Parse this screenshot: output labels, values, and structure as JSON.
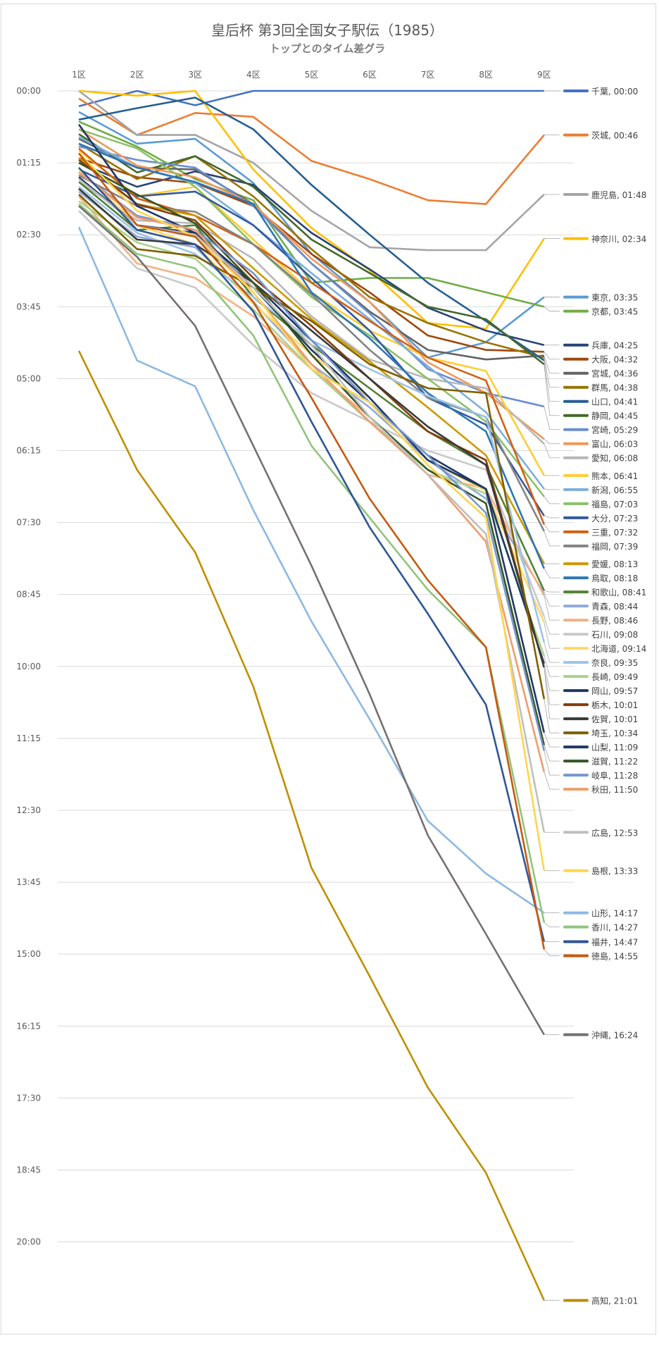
{
  "chart_data": {
    "type": "line",
    "title": "皇后杯 第3回全国女子駅伝（1985）",
    "subtitle": "トップとのタイム差グラ",
    "xlabel": "",
    "ylabel": "",
    "categories": [
      "1区",
      "2区",
      "3区",
      "4区",
      "5区",
      "6区",
      "7区",
      "8区",
      "9区"
    ],
    "y_unit": "seconds behind leader (mm:ss)",
    "y_ticks": [
      "00:00",
      "01:15",
      "02:30",
      "03:45",
      "05:00",
      "06:15",
      "07:30",
      "08:45",
      "10:00",
      "11:15",
      "12:30",
      "13:45",
      "15:00",
      "16:15",
      "17:30",
      "18:45",
      "20:00"
    ],
    "y_tick_step_seconds": 75,
    "ylim": [
      0,
      1350
    ],
    "y_reversed": true,
    "grid": true,
    "legend": "right (end-of-line labels)",
    "series": [
      {
        "name": "千葉",
        "label": "千葉, 00:00",
        "color": "#4472c4",
        "values": [
          16,
          0,
          15,
          0,
          0,
          0,
          0,
          0,
          0
        ]
      },
      {
        "name": "茨城",
        "label": "茨城, 00:46",
        "color": "#ed7d31",
        "values": [
          8,
          46,
          23,
          27,
          73,
          92,
          114,
          118,
          46
        ]
      },
      {
        "name": "鹿児島",
        "label": "鹿児島, 01:48",
        "color": "#a5a5a5",
        "values": [
          0,
          46,
          46,
          75,
          125,
          163,
          166,
          166,
          108
        ]
      },
      {
        "name": "神奈川",
        "label": "神奈川, 02:34",
        "color": "#ffc000",
        "values": [
          0,
          5,
          0,
          82,
          143,
          187,
          242,
          248,
          154
        ]
      },
      {
        "name": "東京",
        "label": "東京, 03:35",
        "color": "#5b9bd5",
        "values": [
          22,
          55,
          50,
          96,
          170,
          220,
          278,
          262,
          215
        ]
      },
      {
        "name": "京都",
        "label": "京都, 03:45",
        "color": "#70ad47",
        "values": [
          32,
          58,
          92,
          114,
          200,
          195,
          195,
          210,
          225
        ]
      },
      {
        "name": "兵庫",
        "label": "兵庫, 04:25",
        "color": "#264478",
        "values": [
          75,
          100,
          84,
          98,
          148,
          186,
          226,
          250,
          265
        ]
      },
      {
        "name": "大阪",
        "label": "大阪, 04:32",
        "color": "#9e480e",
        "values": [
          70,
          90,
          96,
          120,
          170,
          210,
          255,
          270,
          272
        ]
      },
      {
        "name": "宮城",
        "label": "宮城, 04:36",
        "color": "#636363",
        "values": [
          50,
          80,
          82,
          118,
          180,
          230,
          270,
          280,
          276
        ]
      },
      {
        "name": "群馬",
        "label": "群馬, 04:38",
        "color": "#997300",
        "values": [
          55,
          92,
          68,
          110,
          165,
          215,
          242,
          262,
          278
        ]
      },
      {
        "name": "山口",
        "label": "山口, 04:41",
        "color": "#255e91",
        "values": [
          30,
          18,
          7,
          40,
          98,
          150,
          200,
          240,
          281
        ]
      },
      {
        "name": "静岡",
        "label": "静岡, 04:45",
        "color": "#43682b",
        "values": [
          45,
          85,
          68,
          100,
          155,
          190,
          225,
          238,
          285
        ]
      },
      {
        "name": "宮崎",
        "label": "宮崎, 05:29",
        "color": "#698ed0",
        "values": [
          58,
          72,
          80,
          120,
          180,
          232,
          290,
          315,
          329
        ]
      },
      {
        "name": "富山",
        "label": "富山, 06:03",
        "color": "#f1975a",
        "values": [
          40,
          78,
          90,
          118,
          175,
          220,
          283,
          315,
          363
        ]
      },
      {
        "name": "愛知",
        "label": "愛知, 06:08",
        "color": "#b7b7b7",
        "values": [
          95,
          135,
          138,
          175,
          235,
          280,
          300,
          310,
          368
        ]
      },
      {
        "name": "熊本",
        "label": "熊本, 06:41",
        "color": "#ffcd33",
        "values": [
          62,
          110,
          100,
          155,
          210,
          250,
          278,
          292,
          401
        ]
      },
      {
        "name": "新潟",
        "label": "新潟, 06:55",
        "color": "#7cafdd",
        "values": [
          48,
          80,
          96,
          140,
          190,
          238,
          287,
          335,
          415
        ]
      },
      {
        "name": "福島",
        "label": "福島, 07:03",
        "color": "#8cc168",
        "values": [
          40,
          60,
          100,
          160,
          215,
          255,
          300,
          345,
          423
        ]
      },
      {
        "name": "大分",
        "label": "大分, 07:23",
        "color": "#335aa1",
        "values": [
          82,
          110,
          105,
          140,
          195,
          250,
          320,
          348,
          443
        ]
      },
      {
        "name": "三重",
        "label": "三重, 07:32",
        "color": "#d26012",
        "values": [
          60,
          112,
          130,
          160,
          200,
          240,
          278,
          302,
          452
        ]
      },
      {
        "name": "福岡",
        "label": "福岡, 07:39",
        "color": "#848484",
        "values": [
          88,
          120,
          126,
          160,
          212,
          270,
          320,
          340,
          459
        ]
      },
      {
        "name": "愛媛",
        "label": "愛媛, 08:13",
        "color": "#cc9a00",
        "values": [
          70,
          118,
          130,
          185,
          238,
          282,
          330,
          380,
          493
        ]
      },
      {
        "name": "鳥取",
        "label": "鳥取, 08:18",
        "color": "#2e75b6",
        "values": [
          55,
          80,
          95,
          118,
          210,
          258,
          315,
          355,
          498
        ]
      },
      {
        "name": "和歌山",
        "label": "和歌山, 08:41",
        "color": "#548235",
        "values": [
          95,
          145,
          140,
          215,
          265,
          310,
          355,
          390,
          521
        ]
      },
      {
        "name": "青森",
        "label": "青森, 08:44",
        "color": "#8faadc",
        "values": [
          105,
          152,
          163,
          220,
          285,
          330,
          385,
          425,
          524
        ]
      },
      {
        "name": "長野",
        "label": "長野, 08:46",
        "color": "#f4b183",
        "values": [
          110,
          180,
          195,
          235,
          290,
          340,
          400,
          415,
          526
        ]
      },
      {
        "name": "石川",
        "label": "石川, 09:08",
        "color": "#c9c9c9",
        "values": [
          125,
          185,
          205,
          265,
          315,
          345,
          375,
          395,
          548
        ]
      },
      {
        "name": "北海道",
        "label": "北海道, 09:14",
        "color": "#ffd966",
        "values": [
          82,
          140,
          160,
          222,
          275,
          320,
          385,
          417,
          554
        ]
      },
      {
        "name": "奈良",
        "label": "奈良, 09:35",
        "color": "#9dc3e6",
        "values": [
          100,
          148,
          170,
          215,
          260,
          290,
          318,
          340,
          575
        ]
      },
      {
        "name": "長崎",
        "label": "長崎, 09:49",
        "color": "#a9d18e",
        "values": [
          115,
          158,
          175,
          228,
          290,
          345,
          395,
          420,
          589
        ]
      },
      {
        "name": "岡山",
        "label": "岡山, 09:57",
        "color": "#1f3864",
        "values": [
          90,
          140,
          148,
          200,
          260,
          320,
          385,
          415,
          597
        ]
      },
      {
        "name": "栃木",
        "label": "栃木, 10:01",
        "color": "#843c0c",
        "values": [
          72,
          118,
          135,
          195,
          245,
          300,
          355,
          385,
          601
        ]
      },
      {
        "name": "佐賀",
        "label": "佐賀, 10:01",
        "color": "#3a3a3a",
        "values": [
          102,
          155,
          160,
          200,
          250,
          300,
          350,
          390,
          601
        ]
      },
      {
        "name": "埼玉",
        "label": "埼玉, 10:34",
        "color": "#7f6000",
        "values": [
          108,
          165,
          172,
          205,
          240,
          285,
          310,
          315,
          634
        ]
      },
      {
        "name": "山梨",
        "label": "山梨, 11:09",
        "color": "#203864",
        "values": [
          35,
          120,
          148,
          205,
          270,
          325,
          380,
          415,
          669
        ]
      },
      {
        "name": "滋賀",
        "label": "滋賀, 11:22",
        "color": "#375623",
        "values": [
          75,
          108,
          138,
          200,
          275,
          340,
          395,
          430,
          682
        ]
      },
      {
        "name": "岐阜",
        "label": "岐阜, 11:28",
        "color": "#7796cf",
        "values": [
          85,
          130,
          145,
          190,
          260,
          325,
          380,
          440,
          688
        ]
      },
      {
        "name": "秋田",
        "label": "秋田, 11:50",
        "color": "#f09c6c",
        "values": [
          85,
          132,
          145,
          210,
          285,
          345,
          400,
          470,
          710
        ]
      },
      {
        "name": "広島",
        "label": "広島, 12:53",
        "color": "#bfbfbf",
        "values": [
          92,
          140,
          150,
          205,
          265,
          340,
          400,
          462,
          773
        ]
      },
      {
        "name": "島根",
        "label": "島根, 13:33",
        "color": "#ffd54f",
        "values": [
          65,
          125,
          152,
          210,
          290,
          325,
          390,
          445,
          813
        ]
      },
      {
        "name": "山形",
        "label": "山形, 14:17",
        "color": "#8db9e2",
        "values": [
          142,
          281,
          308,
          437,
          553,
          655,
          761,
          816,
          857
        ]
      },
      {
        "name": "香川",
        "label": "香川, 14:27",
        "color": "#92c47d",
        "values": [
          118,
          170,
          185,
          255,
          370,
          445,
          520,
          580,
          867
        ]
      },
      {
        "name": "福井",
        "label": "福井, 14:47",
        "color": "#2f5597",
        "values": [
          80,
          145,
          160,
          230,
          345,
          455,
          545,
          640,
          887
        ]
      },
      {
        "name": "徳島",
        "label": "徳島, 14:55",
        "color": "#c55a11",
        "values": [
          65,
          140,
          152,
          220,
          320,
          425,
          510,
          580,
          895
        ]
      },
      {
        "name": "沖縄",
        "label": "沖縄, 16:24",
        "color": "#767171",
        "values": [
          120,
          173,
          245,
          370,
          495,
          629,
          776,
          879,
          984
        ]
      },
      {
        "name": "高知",
        "label": "高知, 21:01",
        "color": "#bf8f00",
        "values": [
          271,
          395,
          481,
          621,
          810,
          923,
          1039,
          1128,
          1261
        ]
      }
    ]
  }
}
